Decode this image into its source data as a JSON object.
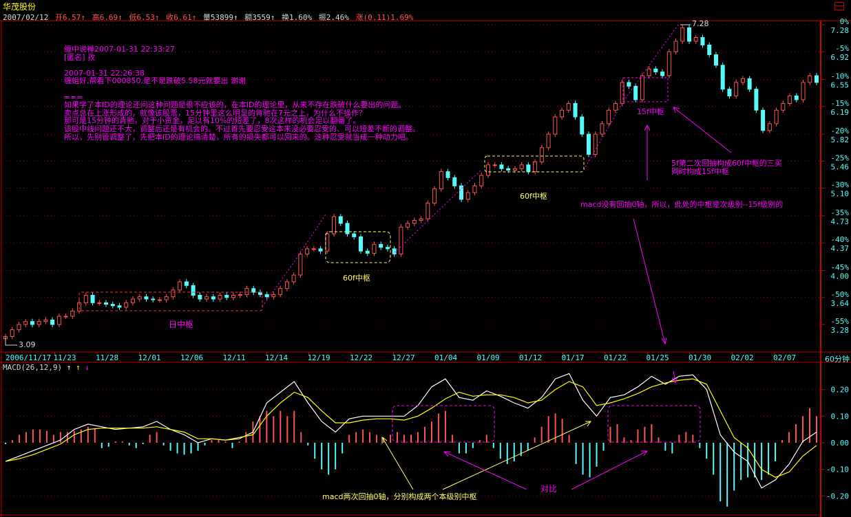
{
  "header": {
    "stock_name": "华茂股份",
    "date": "2007/02/12",
    "fields": [
      {
        "text": "开6.57↑",
        "color": "red"
      },
      {
        "text": "高6.69↑",
        "color": "red"
      },
      {
        "text": "低6.53↑",
        "color": "red"
      },
      {
        "text": "收6.61↑",
        "color": "red"
      },
      {
        "text": "量53899↑",
        "color": "white"
      },
      {
        "text": "额3559↑",
        "color": "white"
      },
      {
        "text": "换1.60%",
        "color": "white"
      },
      {
        "text": "振2.46%",
        "color": "white"
      },
      {
        "text": "涨(0.11)1.69%",
        "color": "red"
      }
    ],
    "period": "60分钟"
  },
  "annotations": {
    "post_lines": [
      "缠中说禅2007-01-31 22:33:27",
      "[匿名] 孜",
      "",
      "2007-01-31 22:26:38",
      "缠姐好,帮看下000850,是不是跌破5.58元就要出 谢谢",
      "",
      "===",
      "如果学了本ID的理论还问这种问题是很不应该的，在本ID的理论里，从来不存在跌破什么要出的问题。",
      "卖点总在上涨形成的，就像该股票，15分钟里这么明显的背驰在7元之上，为什么不操作？",
      "那可是15分钟的背驰，对于小资金，足以有10%的短差了，8次这样的机会足以翻番了。",
      "该股中线问题还不大，调整后还是有机会的。不过首先要忍受这本来没必要忍受的、可以短差不断的调整。",
      "所以，先别管调整了，先把本ID的理论搞清楚，所有的损失都可以回来的。这种忍受就当成一种动力吧。"
    ],
    "daily_pivot": "日中枢",
    "pivot_60f_1": "60f中枢",
    "pivot_60f_2": "60f中枢",
    "pivot_15f": "15f中枢",
    "third_buy_line1": "5f第二次回抽构成60f中枢的三买",
    "third_buy_line2": "同时构成15f中枢",
    "macd_note": "macd没有回抽0轴，所以，此处的中枢是次级别--15f级别的",
    "macd_pullback_note": "macd两次回抽0轴，分别构成两个本级别中枢",
    "compare": "对比",
    "high_label": "7.28",
    "low_label": "3.09"
  },
  "chart_data": [
    {
      "type": "candlestick",
      "interval": "60分钟",
      "x_tick_labels": [
        "2006/11/17",
        "11/23",
        "11/28",
        "12/01",
        "12/06",
        "12/11",
        "12/14",
        "12/19",
        "12/22",
        "12/27",
        "01/04",
        "01/09",
        "01/12",
        "01/17",
        "01/22",
        "01/25",
        "01/30",
        "02/02",
        "02/07"
      ],
      "y_ticks": [
        {
          "pct": "0%",
          "price": "7.28",
          "value": 7.28
        },
        {
          "pct": "-5%",
          "price": "6.92",
          "value": 6.92
        },
        {
          "pct": "-10%",
          "price": "6.55",
          "value": 6.55
        },
        {
          "pct": "-15%",
          "price": "6.19",
          "value": 6.19
        },
        {
          "pct": "-20%",
          "price": "5.82",
          "value": 5.82
        },
        {
          "pct": "-25%",
          "price": "5.46",
          "value": 5.46
        },
        {
          "pct": "-30%",
          "price": "5.10",
          "value": 5.1
        },
        {
          "pct": "-35%",
          "price": "4.73",
          "value": 4.73
        },
        {
          "pct": "-40%",
          "price": "4.37",
          "value": 4.37
        },
        {
          "pct": "-45%",
          "price": "4.00",
          "value": 4.0
        },
        {
          "pct": "-50%",
          "price": "3.64",
          "value": 3.64
        },
        {
          "pct": "-55%",
          "price": "3.28",
          "value": 3.28
        }
      ],
      "ylim": [
        3.0,
        7.32
      ],
      "grid": true,
      "closes": [
        3.12,
        3.21,
        3.28,
        3.32,
        3.28,
        3.32,
        3.34,
        3.28,
        3.39,
        3.39,
        3.46,
        3.57,
        3.67,
        3.57,
        3.57,
        3.55,
        3.53,
        3.51,
        3.57,
        3.62,
        3.65,
        3.62,
        3.61,
        3.61,
        3.65,
        3.74,
        3.85,
        3.8,
        3.67,
        3.62,
        3.65,
        3.62,
        3.67,
        3.64,
        3.67,
        3.68,
        3.76,
        3.71,
        3.68,
        3.65,
        3.68,
        3.76,
        3.85,
        3.94,
        4.22,
        4.29,
        4.29,
        4.26,
        4.49,
        4.72,
        4.63,
        4.49,
        4.45,
        4.26,
        4.23,
        4.35,
        4.31,
        4.29,
        4.22,
        4.58,
        4.63,
        4.67,
        4.69,
        4.9,
        5.09,
        5.32,
        5.24,
        5.13,
        4.95,
        5.04,
        5.13,
        5.27,
        5.41,
        5.41,
        5.36,
        5.34,
        5.36,
        5.41,
        5.32,
        5.45,
        5.64,
        5.82,
        6.05,
        6.14,
        6.23,
        6.05,
        5.82,
        5.55,
        5.82,
        5.96,
        6.14,
        6.23,
        6.51,
        6.46,
        6.28,
        6.6,
        6.69,
        6.65,
        6.6,
        6.92,
        7.06,
        7.24,
        7.06,
        7.11,
        7.01,
        6.88,
        6.74,
        6.42,
        6.33,
        6.51,
        6.56,
        6.42,
        6.14,
        5.87,
        5.96,
        6.14,
        6.23,
        6.33,
        6.28,
        6.51,
        6.6,
        6.51
      ],
      "up_color": "#ff5454",
      "down_color": "#54fcfc"
    },
    {
      "type": "line",
      "title": "MACD(26,12,9)",
      "y_ticks": [
        "0.20",
        "0.10",
        "0.00",
        "-0.10",
        "-0.20"
      ],
      "ylim": [
        -0.26,
        0.28
      ],
      "grid": true,
      "series": [
        {
          "key": "dif",
          "color": "#ffffff",
          "values": [
            -0.07,
            -0.05,
            -0.03,
            -0.01,
            0.01,
            0.05,
            0.07,
            0.06,
            0.05,
            0.055,
            0.06,
            0.08,
            0.05,
            0.03,
            0.0,
            0.015,
            0.01,
            0.015,
            0.04,
            0.15,
            0.19,
            0.23,
            0.15,
            0.08,
            0.04,
            0.09,
            0.1,
            0.1,
            0.1,
            0.1,
            0.14,
            0.21,
            0.24,
            0.17,
            0.16,
            0.195,
            0.175,
            0.15,
            0.13,
            0.17,
            0.24,
            0.26,
            0.16,
            0.1,
            0.17,
            0.18,
            0.21,
            0.25,
            0.22,
            0.25,
            0.255,
            0.2,
            0.03,
            -0.035,
            -0.07,
            -0.17,
            -0.14,
            -0.08,
            0.005,
            0.04
          ]
        },
        {
          "key": "dea",
          "color": "#ffff00",
          "values": [
            -0.07,
            -0.06,
            -0.045,
            -0.025,
            -0.005,
            0.03,
            0.05,
            0.055,
            0.055,
            0.055,
            0.055,
            0.06,
            0.05,
            0.04,
            0.015,
            0.015,
            0.01,
            0.02,
            0.03,
            0.1,
            0.15,
            0.19,
            0.17,
            0.12,
            0.075,
            0.075,
            0.085,
            0.09,
            0.09,
            0.085,
            0.1,
            0.13,
            0.165,
            0.19,
            0.175,
            0.18,
            0.18,
            0.17,
            0.15,
            0.16,
            0.2,
            0.23,
            0.21,
            0.14,
            0.15,
            0.165,
            0.185,
            0.21,
            0.225,
            0.235,
            0.24,
            0.22,
            0.12,
            0.02,
            -0.02,
            -0.1,
            -0.13,
            -0.11,
            -0.05,
            -0.01
          ]
        }
      ],
      "histogram": [
        -0.005,
        0.01,
        0.03,
        0.04,
        0.05,
        0.05,
        0.045,
        0.03,
        0.04,
        0.04,
        0.045,
        0.05,
        0.06,
        0.055,
        -0.02,
        -0.015,
        0.005,
        0.005,
        -0.01,
        -0.02,
        -0.005,
        0.03,
        0.04,
        -0.01,
        -0.03,
        -0.04,
        -0.045,
        -0.04,
        -0.03,
        -0.01,
        0.01,
        0.01,
        0.005,
        -0.02,
        0.005,
        0.04,
        0.08,
        0.1,
        0.12,
        0.1,
        0.12,
        0.1,
        0.12,
        0.04,
        -0.01,
        -0.06,
        -0.1,
        -0.12,
        -0.1,
        -0.04,
        0.03,
        0.04,
        0.05,
        0.04,
        0.03,
        0.02,
        0.03,
        0.04,
        0.03,
        0.03,
        0.04,
        0.06,
        0.08,
        0.11,
        0.12,
        0.03,
        -0.04,
        -0.04,
        -0.02,
        0.01,
        0.03,
        -0.02,
        -0.06,
        -0.08,
        -0.07,
        -0.05,
        -0.03,
        0.02,
        0.06,
        0.1,
        0.11,
        0.09,
        0.03,
        -0.08,
        -0.12,
        -0.13,
        -0.09,
        -0.03,
        0.06,
        0.07,
        0.02,
        0.01,
        0.05,
        0.06,
        0.07,
        0.02,
        -0.03,
        -0.04,
        0.03,
        0.04,
        0.03,
        -0.02,
        -0.06,
        -0.12,
        -0.22,
        -0.24,
        -0.18,
        -0.14,
        -0.13,
        -0.13,
        -0.14,
        -0.12,
        -0.07,
        0.01,
        0.04,
        0.07,
        0.1,
        0.13,
        0.1
      ]
    }
  ]
}
